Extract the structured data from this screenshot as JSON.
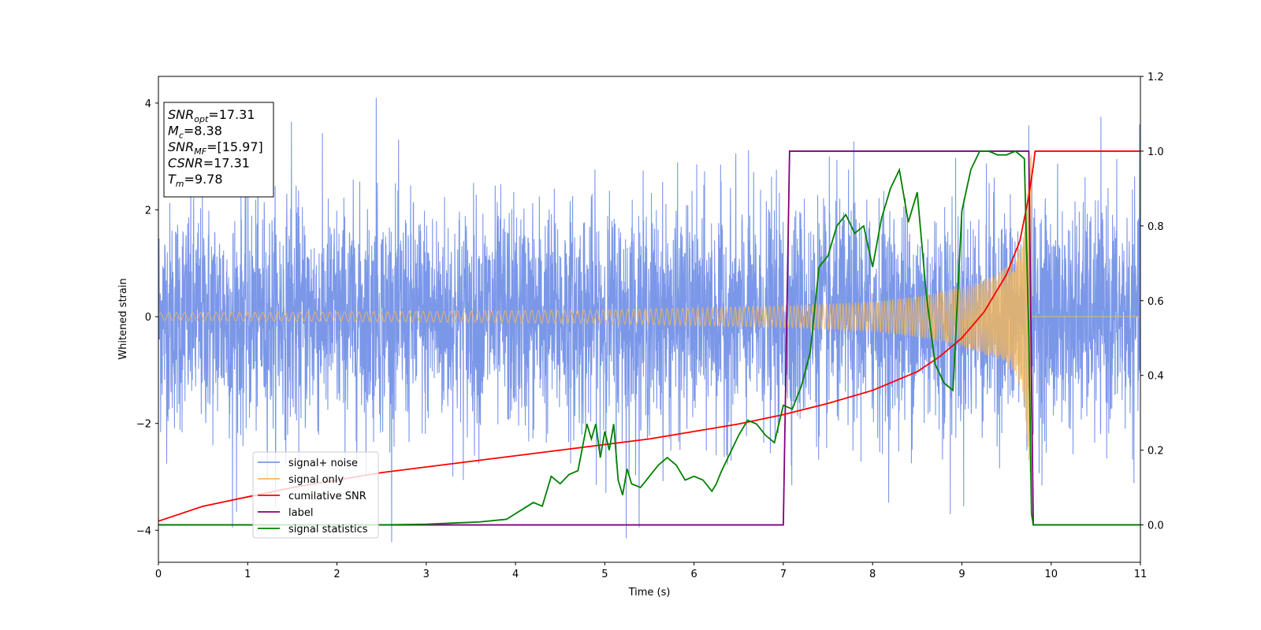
{
  "chart_data": {
    "type": "line",
    "xlabel": "Time (s)",
    "ylabel": "Whitened strain",
    "xlim": [
      0,
      11
    ],
    "ylim": [
      -4.6,
      4.5
    ],
    "y2lim": [
      -0.1,
      1.2
    ],
    "x_ticks": [
      0,
      1,
      2,
      3,
      4,
      5,
      6,
      7,
      8,
      9,
      10,
      11
    ],
    "y_ticks": [
      -4,
      -2,
      0,
      2,
      4
    ],
    "y2_ticks": [
      0.0,
      0.2,
      0.4,
      0.6,
      0.8,
      1.0,
      1.2
    ],
    "grid": false,
    "legend_placement": "lower-left",
    "info_box": {
      "placement": "top-left",
      "lines": [
        {
          "var": "SNR",
          "sub": "opt",
          "value": "=17.31"
        },
        {
          "var": "M",
          "sub": "c",
          "value": "=8.38"
        },
        {
          "var": "SNR",
          "sub": "MF",
          "value": "=[15.97]"
        },
        {
          "var": "CSNR",
          "sub": "",
          "value": "=17.31"
        },
        {
          "var": "T",
          "sub": "m",
          "value": "=9.78"
        }
      ]
    },
    "series": [
      {
        "name": "signal+ noise",
        "axis": "left",
        "color": "#7b97e8",
        "kind": "noise",
        "x_range": [
          0,
          11
        ],
        "noise_std": 1.0,
        "peaks": [
          {
            "x": 0.83,
            "y": -3.95
          },
          {
            "x": 2.44,
            "y": 4.1
          },
          {
            "x": 5.24,
            "y": -4.15
          },
          {
            "x": 7.79,
            "y": 3.28
          },
          {
            "x": 9.75,
            "y": 3.58
          },
          {
            "x": 10.99,
            "y": 3.6
          },
          {
            "x": 1.49,
            "y": 3.65
          },
          {
            "x": 8.87,
            "y": -3.7
          }
        ]
      },
      {
        "name": "signal only",
        "axis": "left",
        "color": "#f5b85a",
        "kind": "chirp",
        "start": 0.0,
        "end": 9.78,
        "amplitude_envelope": [
          [
            0,
            0.07
          ],
          [
            3,
            0.1
          ],
          [
            5,
            0.13
          ],
          [
            7,
            0.2
          ],
          [
            8,
            0.28
          ],
          [
            8.5,
            0.38
          ],
          [
            9,
            0.55
          ],
          [
            9.4,
            0.8
          ],
          [
            9.6,
            1.1
          ],
          [
            9.7,
            1.6
          ],
          [
            9.78,
            3.3
          ]
        ],
        "frequency": [
          [
            0,
            11
          ],
          [
            5,
            14
          ],
          [
            7,
            22
          ],
          [
            9,
            40
          ],
          [
            9.78,
            90
          ]
        ]
      },
      {
        "name": "cumilative SNR",
        "axis": "right",
        "color": "#ff0000",
        "x": [
          0,
          0.5,
          1,
          1.5,
          2,
          2.5,
          3,
          3.5,
          4,
          4.5,
          5,
          5.5,
          6,
          6.5,
          7,
          7.5,
          8,
          8.25,
          8.5,
          8.75,
          9,
          9.25,
          9.5,
          9.65,
          9.75,
          9.8,
          9.82,
          11
        ],
        "y": [
          0.01,
          0.05,
          0.075,
          0.1,
          0.12,
          0.14,
          0.155,
          0.17,
          0.185,
          0.2,
          0.215,
          0.23,
          0.25,
          0.27,
          0.295,
          0.325,
          0.36,
          0.385,
          0.41,
          0.45,
          0.5,
          0.57,
          0.67,
          0.76,
          0.88,
          0.96,
          1.0,
          1.0
        ]
      },
      {
        "name": "label",
        "axis": "right",
        "color": "#800080",
        "x": [
          0,
          7.0,
          7.07,
          9.75,
          9.8,
          11
        ],
        "y": [
          0,
          0,
          1,
          1,
          0,
          0
        ]
      },
      {
        "name": "signal statistics",
        "axis": "right",
        "color": "#008000",
        "x": [
          0,
          0.5,
          1,
          1.5,
          2,
          2.5,
          3,
          3.3,
          3.6,
          3.9,
          4.0,
          4.1,
          4.2,
          4.3,
          4.4,
          4.5,
          4.6,
          4.7,
          4.8,
          4.85,
          4.9,
          4.95,
          5.0,
          5.05,
          5.1,
          5.15,
          5.2,
          5.25,
          5.3,
          5.4,
          5.5,
          5.6,
          5.7,
          5.8,
          5.9,
          6.0,
          6.1,
          6.2,
          6.25,
          6.3,
          6.4,
          6.5,
          6.6,
          6.7,
          6.8,
          6.9,
          7.0,
          7.1,
          7.2,
          7.3,
          7.4,
          7.5,
          7.6,
          7.7,
          7.8,
          7.9,
          8.0,
          8.1,
          8.2,
          8.3,
          8.4,
          8.5,
          8.6,
          8.7,
          8.8,
          8.9,
          9.0,
          9.1,
          9.2,
          9.3,
          9.4,
          9.5,
          9.6,
          9.7,
          9.75,
          9.78,
          9.8,
          9.9,
          10,
          11
        ],
        "y": [
          0,
          0,
          0,
          0,
          0,
          0,
          0.002,
          0.005,
          0.008,
          0.015,
          0.03,
          0.045,
          0.06,
          0.05,
          0.13,
          0.11,
          0.135,
          0.145,
          0.27,
          0.23,
          0.27,
          0.18,
          0.25,
          0.2,
          0.27,
          0.12,
          0.08,
          0.15,
          0.11,
          0.1,
          0.13,
          0.16,
          0.18,
          0.16,
          0.12,
          0.13,
          0.12,
          0.09,
          0.11,
          0.14,
          0.19,
          0.24,
          0.28,
          0.27,
          0.24,
          0.22,
          0.32,
          0.31,
          0.37,
          0.46,
          0.69,
          0.72,
          0.8,
          0.83,
          0.78,
          0.8,
          0.69,
          0.82,
          0.9,
          0.95,
          0.81,
          0.89,
          0.62,
          0.43,
          0.38,
          0.36,
          0.84,
          0.95,
          1.0,
          1.0,
          0.99,
          0.99,
          1.0,
          0.98,
          0.5,
          0.03,
          0.0,
          0.0,
          0.0,
          0.0
        ]
      }
    ]
  }
}
